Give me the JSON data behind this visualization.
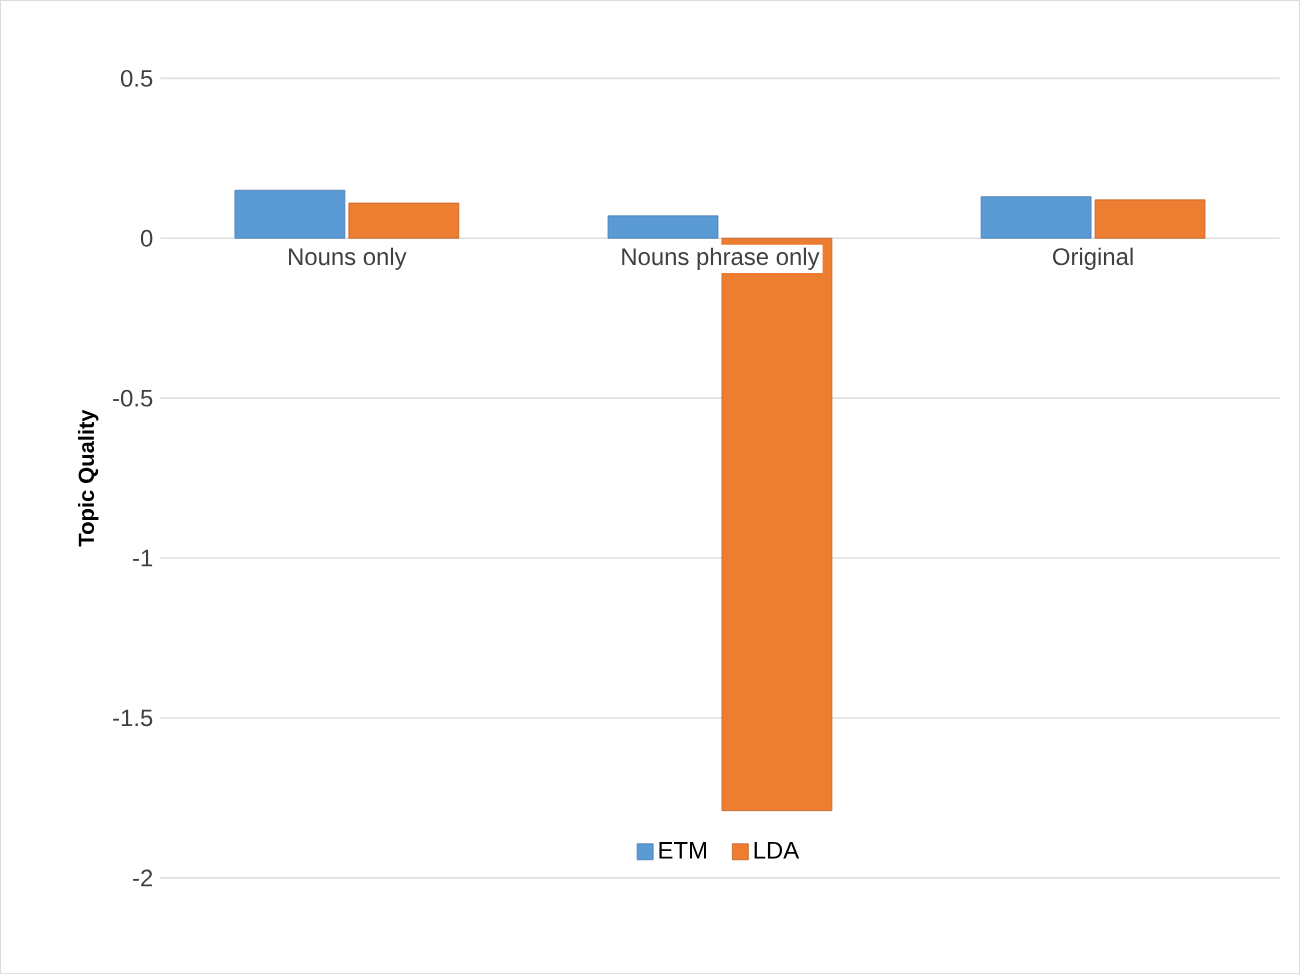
{
  "chart_data": {
    "type": "bar",
    "ylabel": "Topic Quality",
    "categories": [
      "Nouns only",
      "Nouns phrase only",
      "Original"
    ],
    "series": [
      {
        "name": "ETM",
        "color": "#5b9bd5",
        "values": [
          0.15,
          0.07,
          0.13
        ]
      },
      {
        "name": "LDA",
        "color": "#ed7d31",
        "values": [
          0.11,
          -1.79,
          0.12
        ]
      }
    ],
    "ylim": [
      -2,
      0.5
    ],
    "yticks": [
      0.5,
      0,
      -0.5,
      -1,
      -1.5,
      -2
    ],
    "grid": "y",
    "legend": "bottom"
  }
}
